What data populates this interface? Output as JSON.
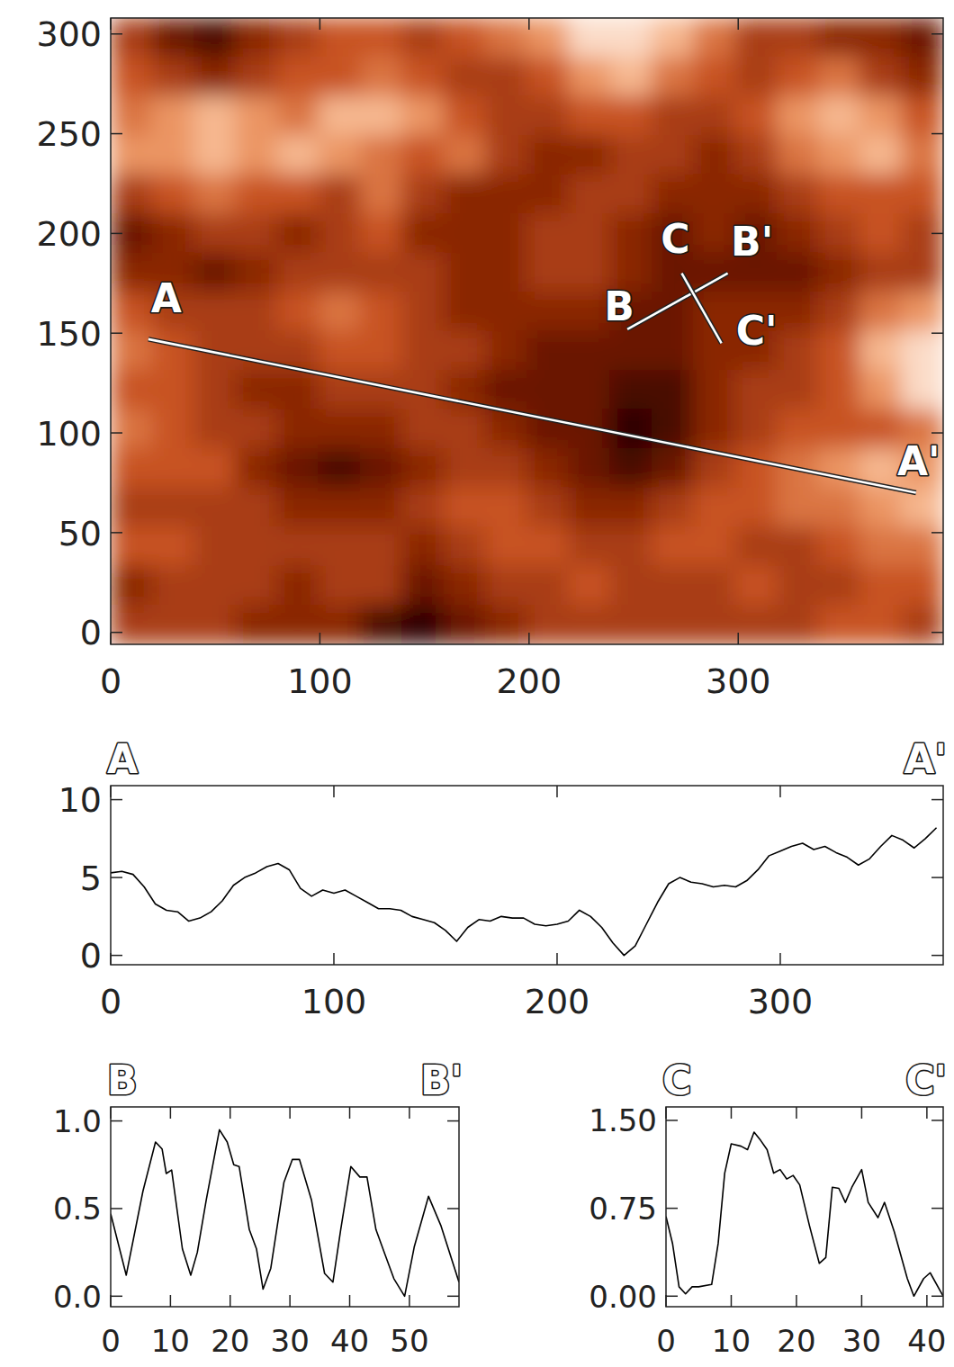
{
  "chart_data": [
    {
      "type": "heatmap",
      "xlim": [
        0,
        398
      ],
      "ylim": [
        -6,
        308
      ],
      "xticks": [
        0,
        100,
        200,
        300
      ],
      "yticks": [
        0,
        50,
        100,
        150,
        200,
        250,
        300
      ],
      "zlim": [
        0,
        10
      ],
      "z": [
        [
          4,
          2,
          1,
          3,
          4,
          5,
          5,
          4,
          5,
          6,
          7,
          9,
          9,
          8,
          6,
          4,
          4,
          3,
          3,
          2
        ],
        [
          5,
          4,
          3,
          4,
          5,
          5,
          6,
          5,
          4,
          4,
          5,
          7,
          8,
          6,
          5,
          4,
          5,
          6,
          4,
          3
        ],
        [
          6,
          7,
          8,
          7,
          6,
          8,
          8,
          7,
          5,
          4,
          4,
          5,
          5,
          4,
          4,
          5,
          7,
          8,
          7,
          5
        ],
        [
          7,
          7,
          8,
          7,
          8,
          7,
          6,
          5,
          6,
          4,
          3,
          3,
          4,
          4,
          3,
          4,
          6,
          7,
          8,
          6
        ],
        [
          4,
          5,
          6,
          5,
          5,
          4,
          6,
          4,
          3,
          3,
          3,
          4,
          4,
          3,
          3,
          3,
          4,
          5,
          5,
          5
        ],
        [
          2,
          3,
          4,
          4,
          3,
          4,
          5,
          3,
          3,
          3,
          4,
          4,
          3,
          2,
          3,
          2,
          3,
          4,
          5,
          4
        ],
        [
          3,
          3,
          2,
          3,
          4,
          4,
          4,
          4,
          3,
          3,
          4,
          4,
          3,
          2,
          2,
          2,
          2,
          3,
          4,
          4
        ],
        [
          5,
          4,
          4,
          4,
          5,
          6,
          5,
          4,
          3,
          3,
          3,
          3,
          2,
          2,
          3,
          3,
          3,
          4,
          6,
          7
        ],
        [
          6,
          5,
          4,
          4,
          4,
          5,
          5,
          4,
          4,
          3,
          2,
          2,
          2,
          2,
          3,
          3,
          4,
          5,
          8,
          9
        ],
        [
          5,
          5,
          4,
          3,
          3,
          4,
          4,
          4,
          3,
          2,
          2,
          2,
          1,
          1,
          3,
          4,
          4,
          5,
          7,
          9
        ],
        [
          6,
          5,
          4,
          4,
          3,
          3,
          3,
          4,
          4,
          3,
          2,
          2,
          0,
          1,
          3,
          4,
          5,
          5,
          5,
          6
        ],
        [
          5,
          5,
          5,
          3,
          2,
          1,
          2,
          3,
          4,
          4,
          3,
          2,
          1,
          2,
          4,
          5,
          6,
          7,
          8,
          7
        ],
        [
          4,
          4,
          4,
          4,
          3,
          3,
          3,
          4,
          5,
          5,
          4,
          3,
          3,
          4,
          5,
          5,
          6,
          6,
          7,
          8
        ],
        [
          5,
          5,
          4,
          4,
          4,
          4,
          4,
          3,
          4,
          5,
          5,
          4,
          4,
          5,
          5,
          4,
          4,
          5,
          6,
          6
        ],
        [
          3,
          4,
          4,
          4,
          3,
          4,
          4,
          2,
          3,
          4,
          4,
          5,
          4,
          4,
          4,
          5,
          4,
          4,
          5,
          5
        ],
        [
          4,
          4,
          4,
          3,
          3,
          3,
          1,
          0,
          2,
          3,
          4,
          4,
          4,
          4,
          4,
          4,
          4,
          5,
          5,
          4
        ]
      ],
      "annotations": [
        {
          "start_text": "A",
          "end_text": "A'",
          "start": [
            18,
            147
          ],
          "end": [
            385,
            70
          ]
        },
        {
          "start_text": "B",
          "end_text": "B'",
          "start": [
            247,
            152
          ],
          "end": [
            295,
            180
          ]
        },
        {
          "start_text": "C",
          "end_text": "C'",
          "start": [
            273,
            180
          ],
          "end": [
            292,
            145
          ]
        }
      ]
    },
    {
      "type": "line",
      "annotations": [
        {
          "text": "A"
        },
        {
          "text": "A'"
        }
      ],
      "xlim": [
        0,
        373
      ],
      "ylim": [
        -0.6,
        10.9
      ],
      "xticks": [
        0,
        100,
        200,
        300
      ],
      "yticks": [
        0,
        5,
        10
      ],
      "color": "#000000",
      "x": [
        0,
        5,
        10,
        15,
        20,
        25,
        30,
        35,
        40,
        45,
        50,
        55,
        60,
        65,
        70,
        75,
        80,
        85,
        90,
        95,
        100,
        105,
        110,
        115,
        120,
        125,
        130,
        135,
        140,
        145,
        150,
        155,
        160,
        165,
        170,
        175,
        180,
        185,
        190,
        195,
        200,
        205,
        210,
        215,
        220,
        225,
        230,
        235,
        240,
        245,
        250,
        255,
        260,
        265,
        270,
        275,
        280,
        285,
        290,
        295,
        300,
        305,
        310,
        315,
        320,
        325,
        330,
        335,
        340,
        345,
        350,
        355,
        360,
        365,
        370
      ],
      "values": [
        5.3,
        5.4,
        5.2,
        4.4,
        3.3,
        2.9,
        2.8,
        2.2,
        2.4,
        2.8,
        3.5,
        4.5,
        5.0,
        5.3,
        5.7,
        5.9,
        5.5,
        4.3,
        3.8,
        4.2,
        4.0,
        4.2,
        3.8,
        3.4,
        3.0,
        3.0,
        2.9,
        2.5,
        2.3,
        2.1,
        1.6,
        0.9,
        1.8,
        2.3,
        2.2,
        2.5,
        2.4,
        2.4,
        2.0,
        1.9,
        2.0,
        2.2,
        2.9,
        2.5,
        1.8,
        0.8,
        0.0,
        0.6,
        2.0,
        3.4,
        4.6,
        5.0,
        4.7,
        4.6,
        4.4,
        4.5,
        4.4,
        4.8,
        5.5,
        6.4,
        6.7,
        7.0,
        7.2,
        6.8,
        7.0,
        6.6,
        6.3,
        5.8,
        6.2,
        7.0,
        7.7,
        7.4,
        6.9,
        7.5,
        8.2
      ]
    },
    {
      "type": "line",
      "annotations": [
        {
          "text": "B"
        },
        {
          "text": "B'"
        }
      ],
      "xlim": [
        0,
        58.3
      ],
      "ylim": [
        -0.06,
        1.08
      ],
      "xticks": [
        0,
        10,
        20,
        30,
        40,
        50
      ],
      "yticks": [
        {
          "value": 0,
          "label": "0.0"
        },
        {
          "value": 0.5,
          "label": "0.5"
        },
        {
          "value": 1,
          "label": "1.0"
        }
      ],
      "color": "#000000",
      "x": [
        0,
        2.6,
        5.4,
        7.5,
        8.6,
        9.3,
        10.2,
        12,
        13.4,
        14.5,
        16,
        18.2,
        19.5,
        20.6,
        21.5,
        23.2,
        24.4,
        25.5,
        26.8,
        29,
        30.4,
        31.6,
        33.6,
        35.8,
        37.2,
        38.5,
        40.2,
        41.7,
        42.9,
        44.4,
        46,
        47.4,
        49.2,
        50.8,
        53.2,
        55.3,
        58.3
      ],
      "values": [
        0.47,
        0.12,
        0.6,
        0.88,
        0.84,
        0.7,
        0.72,
        0.27,
        0.12,
        0.25,
        0.55,
        0.95,
        0.88,
        0.75,
        0.74,
        0.38,
        0.27,
        0.04,
        0.16,
        0.65,
        0.78,
        0.78,
        0.55,
        0.13,
        0.08,
        0.38,
        0.74,
        0.68,
        0.68,
        0.38,
        0.23,
        0.1,
        0.0,
        0.28,
        0.57,
        0.4,
        0.08
      ]
    },
    {
      "type": "line",
      "annotations": [
        {
          "text": "C"
        },
        {
          "text": "C'"
        }
      ],
      "xlim": [
        0,
        42.5
      ],
      "ylim": [
        -0.09,
        1.615
      ],
      "xticks": [
        0,
        10,
        20,
        30,
        40
      ],
      "yticks": [
        {
          "value": 0,
          "label": "0.00"
        },
        {
          "value": 0.75,
          "label": "0.75"
        },
        {
          "value": 1.5,
          "label": "1.50"
        }
      ],
      "color": "#000000",
      "x": [
        0,
        1,
        2,
        3,
        4,
        5,
        7,
        8,
        9,
        10,
        11.5,
        12.5,
        13.5,
        14.5,
        15.5,
        16.5,
        17.5,
        18.5,
        19.5,
        20.5,
        22,
        23.5,
        24.5,
        25.5,
        26.5,
        27.5,
        28.5,
        30,
        31,
        32.5,
        33.5,
        35,
        37,
        38,
        39.5,
        40.5,
        42.5
      ],
      "values": [
        0.68,
        0.45,
        0.08,
        0.02,
        0.08,
        0.08,
        0.1,
        0.45,
        1.05,
        1.3,
        1.28,
        1.25,
        1.4,
        1.33,
        1.25,
        1.05,
        1.08,
        1.0,
        1.03,
        0.95,
        0.6,
        0.28,
        0.33,
        0.93,
        0.92,
        0.8,
        0.93,
        1.08,
        0.8,
        0.67,
        0.8,
        0.55,
        0.15,
        0.0,
        0.15,
        0.2,
        0.0
      ]
    }
  ]
}
